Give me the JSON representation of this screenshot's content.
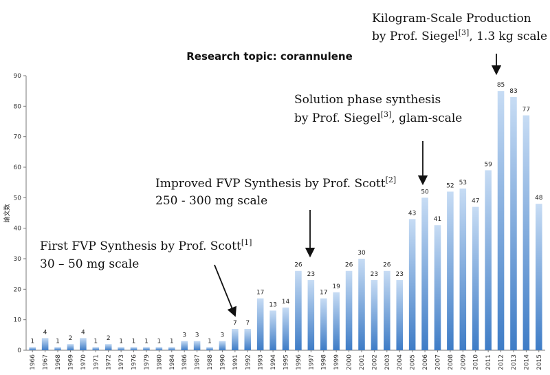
{
  "chart_data": {
    "type": "bar",
    "title": "Research topic: corannulene",
    "xlabel": "",
    "ylabel": "論文数",
    "ylim": [
      0,
      90
    ],
    "yticks": [
      0,
      10,
      20,
      30,
      40,
      50,
      60,
      70,
      80,
      90
    ],
    "grid": false,
    "categories": [
      "1966",
      "1967",
      "1968",
      "1969",
      "1970",
      "1971",
      "1972",
      "1973",
      "1976",
      "1979",
      "1980",
      "1984",
      "1986",
      "1987",
      "1988",
      "1990",
      "1991",
      "1992",
      "1993",
      "1994",
      "1995",
      "1996",
      "1997",
      "1998",
      "1999",
      "2000",
      "2001",
      "2002",
      "2003",
      "2004",
      "2005",
      "2006",
      "2007",
      "2008",
      "2009",
      "2010",
      "2011",
      "2012",
      "2013",
      "2014",
      "2015"
    ],
    "values": [
      1,
      4,
      1,
      2,
      4,
      1,
      2,
      1,
      1,
      1,
      1,
      1,
      3,
      3,
      1,
      3,
      7,
      7,
      17,
      13,
      14,
      26,
      23,
      17,
      19,
      26,
      30,
      23,
      26,
      23,
      43,
      50,
      41,
      52,
      53,
      47,
      59,
      85,
      83,
      77,
      48
    ],
    "colors": {
      "bar_top": "#c7dcf4",
      "bar_bottom": "#3e7cc6",
      "axis": "#777777"
    },
    "annotations": [
      {
        "lines": [
          {
            "text": "First FVP Synthesis by Prof. Scott",
            "sup": "[1]"
          },
          {
            "text": " 30 – 50 mg scale",
            "sup": ""
          }
        ],
        "arrow_to": "1991"
      },
      {
        "lines": [
          {
            "text": "Improved FVP Synthesis by Prof. Scott",
            "sup": "[2]"
          },
          {
            "text": "250 - 300 mg scale",
            "sup": ""
          }
        ],
        "arrow_to": "1997"
      },
      {
        "lines": [
          {
            "text": "Solution phase synthesis",
            "sup": ""
          },
          {
            "text": "by Prof. Siegel",
            "sup": "[3]",
            "after": ", glam-scale"
          }
        ],
        "arrow_to": "2006"
      },
      {
        "lines": [
          {
            "text": "Kilogram-Scale Production",
            "sup": ""
          },
          {
            "text": "by Prof. Siegel",
            "sup": "[3]",
            "after": ", 1.3 kg scale"
          }
        ],
        "arrow_to": "2012"
      }
    ]
  }
}
